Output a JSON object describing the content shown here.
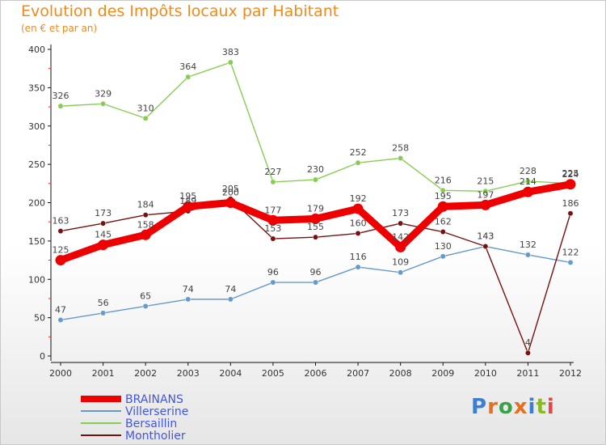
{
  "chart_data": {
    "type": "line",
    "title": "Evolution des Impôts locaux par Habitant",
    "subtitle": "(en € et par an)",
    "x": [
      "2000",
      "2001",
      "2002",
      "2003",
      "2004",
      "2005",
      "2006",
      "2007",
      "2008",
      "2009",
      "2010",
      "2011",
      "2012"
    ],
    "ylim": [
      0,
      400
    ],
    "yticks": [
      0,
      50,
      100,
      150,
      200,
      250,
      300,
      350,
      400
    ],
    "grid": false,
    "legend_position": "bottom-left",
    "series": [
      {
        "name": "BRAINANS",
        "color": "#ee0000",
        "values": [
          125,
          145,
          158,
          195,
          200,
          177,
          179,
          192,
          142,
          195,
          197,
          214,
          224
        ]
      },
      {
        "name": "Villerserine",
        "color": "#6699cc",
        "values": [
          47,
          56,
          65,
          74,
          74,
          96,
          96,
          116,
          109,
          130,
          143,
          132,
          122
        ]
      },
      {
        "name": "Bersaillin",
        "color": "#88cc55",
        "values": [
          326,
          329,
          310,
          364,
          383,
          227,
          230,
          252,
          258,
          216,
          215,
          228,
          225
        ]
      },
      {
        "name": "Montholier",
        "color": "#771111",
        "values": [
          163,
          173,
          184,
          189,
          205,
          153,
          155,
          160,
          173,
          162,
          143,
          4,
          186
        ]
      }
    ]
  },
  "logo": {
    "text": "Proxiti"
  }
}
